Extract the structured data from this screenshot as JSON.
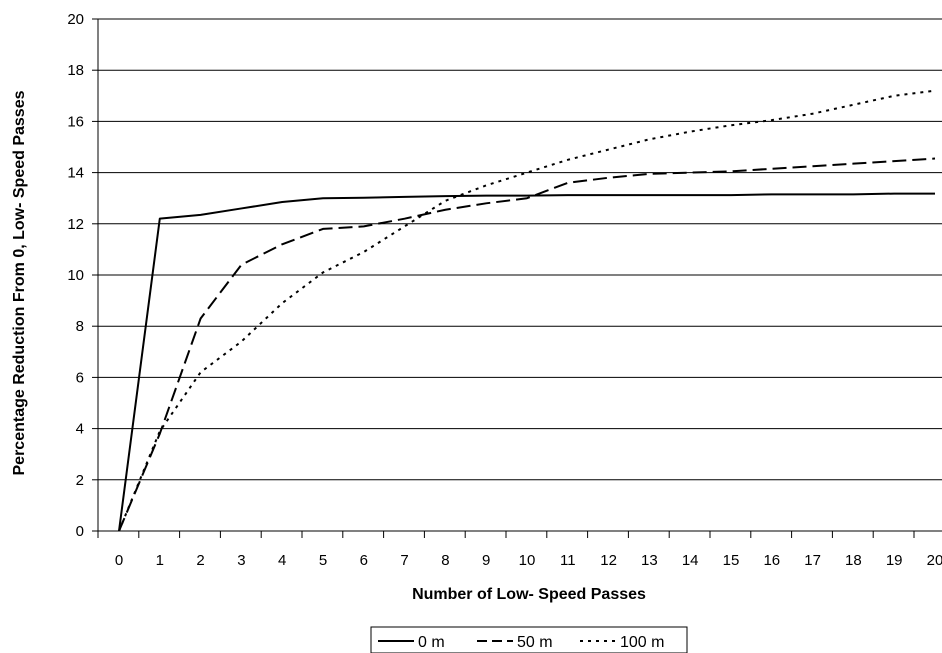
{
  "chart_data": {
    "type": "line",
    "xlabel": "Number of Low- Speed Passes",
    "ylabel": "Percentage Reduction From 0, Low- Speed Passes",
    "x": [
      0,
      1,
      2,
      3,
      4,
      5,
      6,
      7,
      8,
      9,
      10,
      11,
      12,
      13,
      14,
      15,
      16,
      17,
      18,
      19,
      20
    ],
    "xlim": [
      0,
      20
    ],
    "ylim": [
      0,
      20
    ],
    "yticks": [
      0,
      2,
      4,
      6,
      8,
      10,
      12,
      14,
      16,
      18,
      20
    ],
    "xticks": [
      "0",
      "1",
      "2",
      "3",
      "4",
      "5",
      "6",
      "7",
      "8",
      "9",
      "10",
      "11",
      "12",
      "13",
      "14",
      "15",
      "16",
      "17",
      "18",
      "19",
      "20"
    ],
    "ytick_labels": [
      "0",
      "2",
      "4",
      "6",
      "8",
      "10",
      "12",
      "14",
      "16",
      "18",
      "20"
    ],
    "grid": "horizontal",
    "legend_position": "bottom-center",
    "series": [
      {
        "name": "0 m",
        "dash": "solid",
        "values": [
          0,
          12.2,
          12.35,
          12.6,
          12.85,
          13.0,
          13.02,
          13.05,
          13.08,
          13.1,
          13.1,
          13.12,
          13.12,
          13.12,
          13.12,
          13.12,
          13.15,
          13.15,
          13.15,
          13.18,
          13.18
        ]
      },
      {
        "name": "50 m",
        "dash": "dash",
        "values": [
          0,
          3.8,
          8.3,
          10.4,
          11.2,
          11.8,
          11.9,
          12.2,
          12.55,
          12.8,
          13.0,
          13.6,
          13.8,
          13.95,
          14.0,
          14.05,
          14.15,
          14.25,
          14.35,
          14.45,
          14.55
        ]
      },
      {
        "name": "100 m",
        "dash": "dot",
        "values": [
          0,
          3.9,
          6.2,
          7.4,
          8.9,
          10.1,
          10.9,
          11.9,
          12.9,
          13.5,
          14.0,
          14.5,
          14.9,
          15.3,
          15.6,
          15.85,
          16.05,
          16.3,
          16.65,
          17.0,
          17.2
        ]
      }
    ]
  }
}
